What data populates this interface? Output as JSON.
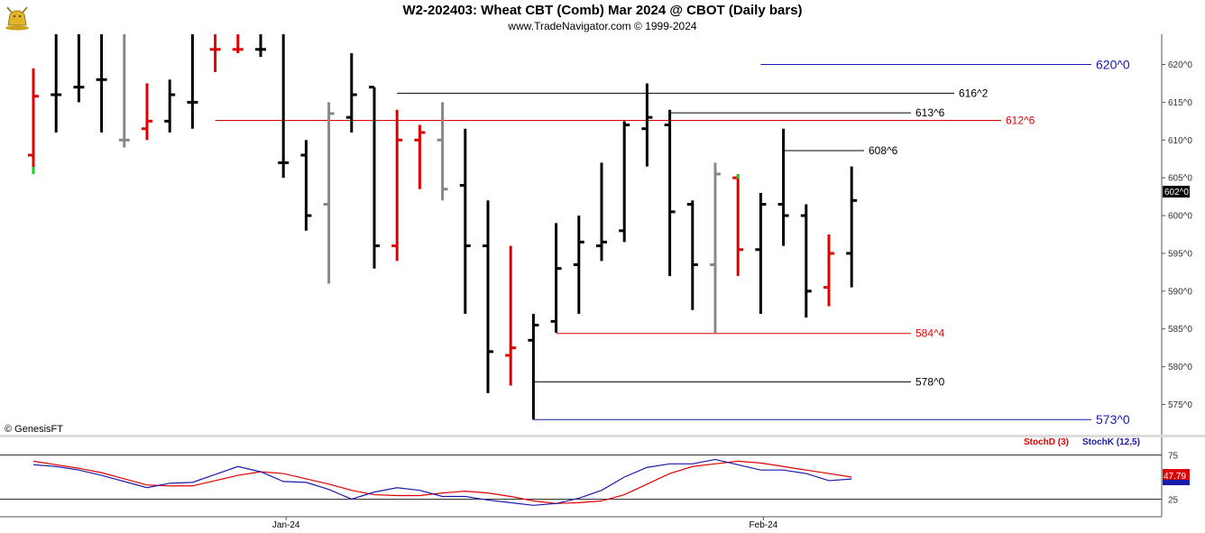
{
  "header": {
    "title": "W2-202403:  Wheat CBT (Comb) Mar 2024 @ CBOT  (Daily bars)",
    "subtitle": "www.TradeNavigator.com © 1999-2024"
  },
  "watermark": "© GenesisFT",
  "chart_data": [
    {
      "type": "ohlc",
      "ylim": [
        571,
        624
      ],
      "y_ticks": [
        575,
        580,
        585,
        590,
        595,
        600,
        605,
        610,
        615,
        620
      ],
      "y_tick_labels": [
        "575^0",
        "580^0",
        "585^0",
        "590^0",
        "595^0",
        "600^0",
        "605^0",
        "610^0",
        "615^0",
        "620^0"
      ],
      "x_labels": [
        {
          "label": "Jan-24",
          "index": 11
        },
        {
          "label": "Feb-24",
          "index": 32
        }
      ],
      "last_price_label": "602^0",
      "colors": {
        "up": "#000000",
        "down": "#e00000",
        "neutral": "#888888",
        "stop": "#22cc22"
      },
      "bars": [
        {
          "o": 608,
          "h": 619.5,
          "l": 605.5,
          "c": 615.8,
          "color": "down"
        },
        {
          "o": 616,
          "h": 625,
          "l": 611,
          "c": 616,
          "color": "up"
        },
        {
          "o": 617,
          "h": 625,
          "l": 615,
          "c": 617,
          "color": "up"
        },
        {
          "o": 618,
          "h": 625,
          "l": 611,
          "c": 618,
          "color": "up"
        },
        {
          "o": 610,
          "h": 625,
          "l": 609,
          "c": 610,
          "color": "neutral"
        },
        {
          "o": 611.5,
          "h": 617.5,
          "l": 610,
          "c": 612.5,
          "color": "down"
        },
        {
          "o": 612.5,
          "h": 618,
          "l": 611,
          "c": 616,
          "color": "up"
        },
        {
          "o": 615,
          "h": 625,
          "l": 611.5,
          "c": 615,
          "color": "up"
        },
        {
          "o": 622,
          "h": 625,
          "l": 619,
          "c": 622,
          "color": "down"
        },
        {
          "o": 622,
          "h": 625,
          "l": 621.5,
          "c": 622,
          "color": "down"
        },
        {
          "o": 622,
          "h": 625,
          "l": 621,
          "c": 622,
          "color": "up"
        },
        {
          "o": 607,
          "h": 625,
          "l": 605,
          "c": 607,
          "color": "up"
        },
        {
          "o": 608,
          "h": 610,
          "l": 598,
          "c": 600,
          "color": "up"
        },
        {
          "o": 601.5,
          "h": 615,
          "l": 591,
          "c": 613.5,
          "color": "neutral"
        },
        {
          "o": 613,
          "h": 621.5,
          "l": 611,
          "c": 616,
          "color": "up"
        },
        {
          "o": 617,
          "h": 617,
          "l": 593,
          "c": 596,
          "color": "up"
        },
        {
          "o": 596,
          "h": 614,
          "l": 594,
          "c": 610,
          "color": "down"
        },
        {
          "o": 610,
          "h": 612,
          "l": 603.5,
          "c": 611,
          "color": "down"
        },
        {
          "o": 610,
          "h": 615,
          "l": 602,
          "c": 603.5,
          "color": "neutral"
        },
        {
          "o": 604,
          "h": 611.5,
          "l": 587,
          "c": 596,
          "color": "up"
        },
        {
          "o": 596,
          "h": 602,
          "l": 576.5,
          "c": 582,
          "color": "up"
        },
        {
          "o": 581.5,
          "h": 596,
          "l": 577.5,
          "c": 582.5,
          "color": "down"
        },
        {
          "o": 583.5,
          "h": 587,
          "l": 573,
          "c": 585.5,
          "color": "up"
        },
        {
          "o": 586,
          "h": 599,
          "l": 584.5,
          "c": 593,
          "color": "up"
        },
        {
          "o": 593.5,
          "h": 600,
          "l": 587,
          "c": 596.5,
          "color": "up"
        },
        {
          "o": 596,
          "h": 607,
          "l": 594,
          "c": 596.5,
          "color": "up"
        },
        {
          "o": 598,
          "h": 612.5,
          "l": 596.5,
          "c": 612,
          "color": "up"
        },
        {
          "o": 611.5,
          "h": 617.5,
          "l": 606.5,
          "c": 613,
          "color": "up"
        },
        {
          "o": 612,
          "h": 614,
          "l": 592,
          "c": 600.5,
          "color": "up"
        },
        {
          "o": 601.5,
          "h": 602,
          "l": 587.5,
          "c": 593.5,
          "color": "up"
        },
        {
          "o": 593.5,
          "h": 607,
          "l": 584.5,
          "c": 605.5,
          "color": "neutral"
        },
        {
          "o": 605,
          "h": 605.5,
          "l": 592,
          "c": 595.5,
          "color": "down"
        },
        {
          "o": 595.5,
          "h": 603,
          "l": 587,
          "c": 601.5,
          "color": "up"
        },
        {
          "o": 601.5,
          "h": 611.5,
          "l": 596,
          "c": 600,
          "color": "up"
        },
        {
          "o": 600,
          "h": 601.5,
          "l": 586.5,
          "c": 590,
          "color": "up"
        },
        {
          "o": 590.5,
          "h": 597.5,
          "l": 588,
          "c": 595,
          "color": "down"
        },
        {
          "o": 595,
          "h": 606.5,
          "l": 590.5,
          "c": 602,
          "color": "up"
        }
      ],
      "levels": [
        {
          "value": 620,
          "label": "620^0",
          "color": "#1a1aaa",
          "from": 32,
          "size": "big"
        },
        {
          "value": 616.2,
          "label": "616^2",
          "color": "#000000",
          "from": 16,
          "size": "normal"
        },
        {
          "value": 613.6,
          "label": "613^6",
          "color": "#000000",
          "from": 28,
          "size": "normal"
        },
        {
          "value": 612.6,
          "label": "612^6",
          "color": "#e00000",
          "from": 8,
          "size": "normal"
        },
        {
          "value": 608.6,
          "label": "608^6",
          "color": "#000000",
          "from": 33,
          "size": "normal"
        },
        {
          "value": 584.4,
          "label": "584^4",
          "color": "#e00000",
          "from": 23,
          "size": "normal"
        },
        {
          "value": 578,
          "label": "578^0",
          "color": "#000000",
          "from": 22,
          "size": "normal"
        },
        {
          "value": 573,
          "label": "573^0",
          "color": "#1a1aaa",
          "from": 22,
          "size": "big"
        }
      ]
    },
    {
      "type": "line",
      "ylim": [
        5,
        95
      ],
      "y_ticks": [
        25,
        75
      ],
      "legend": [
        {
          "name": "StochD (3)",
          "color": "#e00000"
        },
        {
          "name": "StochK (12,5)",
          "color": "#1a1aaa"
        }
      ],
      "reference_lines": [
        25,
        75
      ],
      "last_value_label": "47.79",
      "series": [
        {
          "name": "StochD (3)",
          "color": "#e00000",
          "values": [
            68,
            64,
            60,
            55,
            48,
            41,
            40,
            40,
            46,
            52,
            56,
            54,
            48,
            42,
            35,
            30,
            29,
            29,
            32,
            34,
            32,
            28,
            23,
            20,
            21,
            23,
            30,
            42,
            54,
            62,
            65,
            68,
            66,
            62,
            58,
            54,
            50
          ]
        },
        {
          "name": "StochK (12,5)",
          "color": "#1a1aaa",
          "values": [
            64,
            62,
            58,
            52,
            45,
            38,
            43,
            44,
            53,
            62,
            56,
            45,
            44,
            36,
            25,
            33,
            38,
            35,
            28,
            28,
            24,
            21,
            18,
            20,
            26,
            35,
            50,
            61,
            65,
            65,
            70,
            64,
            58,
            58,
            54,
            46,
            47.79
          ]
        }
      ]
    }
  ]
}
